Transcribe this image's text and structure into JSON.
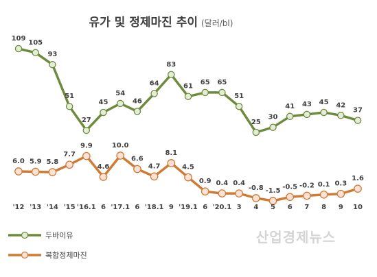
{
  "chart_data": {
    "type": "line",
    "title": "유가 및 정제마진 추이",
    "subtitle": "(달러/bl)",
    "categories": [
      "'12",
      "'13",
      "'14",
      "'15",
      "'16.1",
      "6",
      "'17.1",
      "6",
      "'18.1",
      "9",
      "'19.1",
      "6",
      "'20.1",
      "3",
      "4",
      "5",
      "6",
      "7",
      "8",
      "9",
      "10"
    ],
    "series": [
      {
        "name": "두바이유",
        "color": "#6e8b3d",
        "marker_fill": "#e4eed7",
        "values": [
          109,
          105,
          93,
          51,
          27,
          45,
          54,
          46,
          64,
          83,
          61,
          65,
          65,
          51,
          25,
          30,
          41,
          43,
          45,
          42,
          37
        ],
        "labels": [
          "109",
          "105",
          "93",
          "51",
          "27",
          "45",
          "54",
          "46",
          "64",
          "83",
          "61",
          "65",
          "65",
          "51",
          "25",
          "30",
          "41",
          "43",
          "45",
          "42",
          "37"
        ]
      },
      {
        "name": "복합정제마진",
        "color": "#cf7a35",
        "marker_fill": "#fbe2d4",
        "values": [
          6.0,
          5.9,
          5.8,
          7.7,
          9.9,
          4.6,
          10.0,
          6.6,
          4.7,
          8.1,
          4.5,
          0.9,
          0.4,
          0.4,
          -0.8,
          -1.5,
          -0.5,
          -0.2,
          0.1,
          0.3,
          1.6
        ],
        "labels": [
          "6.0",
          "5.9",
          "5.8",
          "7.7",
          "9.9",
          "4.6",
          "10.0",
          "6.6",
          "4.7",
          "8.1",
          "4.5",
          "0.9",
          "0.4",
          "0.4",
          "-0.8",
          "-1.5",
          "-0.5",
          "-0.2",
          "0.1",
          "0.3",
          "1.6"
        ]
      }
    ],
    "legend_position": "bottom-left",
    "grid": false
  },
  "watermark": "산업경제뉴스"
}
